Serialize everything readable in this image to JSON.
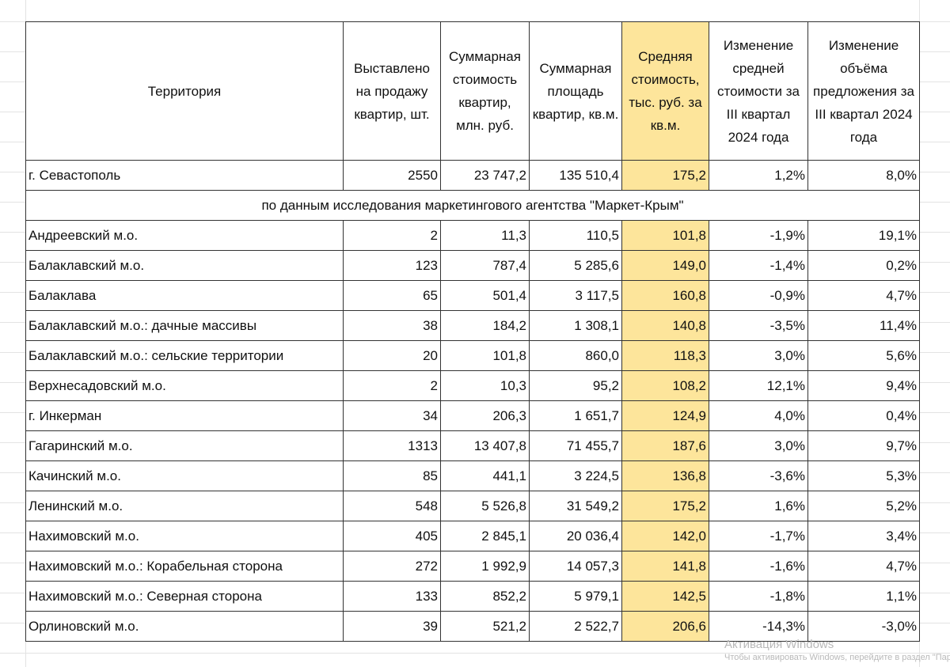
{
  "headers": [
    "Территория",
    "Выставлено на продажу квартир, шт.",
    "Суммарная стоимость квартир, млн. руб.",
    "Суммарная площадь квартир, кв.м.",
    "Средняя стоимость, тыс. руб. за кв.м.",
    "Изменение средней стоимости за III квартал 2024 года",
    "Изменение объёма предложения за III квартал 2024 года"
  ],
  "total_row": [
    "г. Севастополь",
    "2550",
    "23 747,2",
    "135 510,4",
    "175,2",
    "1,2%",
    "8,0%"
  ],
  "note": "по данным исследования маркетингового агентства \"Маркет-Крым\"",
  "rows": [
    [
      "Андреевский м.о.",
      "2",
      "11,3",
      "110,5",
      "101,8",
      "-1,9%",
      "19,1%"
    ],
    [
      "Балаклавский м.о.",
      "123",
      "787,4",
      "5 285,6",
      "149,0",
      "-1,4%",
      "0,2%"
    ],
    [
      "Балаклава",
      "65",
      "501,4",
      "3 117,5",
      "160,8",
      "-0,9%",
      "4,7%"
    ],
    [
      "Балаклавский м.о.: дачные массивы",
      "38",
      "184,2",
      "1 308,1",
      "140,8",
      "-3,5%",
      "11,4%"
    ],
    [
      "Балаклавский м.о.: сельские территории",
      "20",
      "101,8",
      "860,0",
      "118,3",
      "3,0%",
      "5,6%"
    ],
    [
      "Верхнесадовский м.о.",
      "2",
      "10,3",
      "95,2",
      "108,2",
      "12,1%",
      "9,4%"
    ],
    [
      "г. Инкерман",
      "34",
      "206,3",
      "1 651,7",
      "124,9",
      "4,0%",
      "0,4%"
    ],
    [
      "Гагаринский м.о.",
      "1313",
      "13 407,8",
      "71 455,7",
      "187,6",
      "3,0%",
      "9,7%"
    ],
    [
      "Качинский м.о.",
      "85",
      "441,1",
      "3 224,5",
      "136,8",
      "-3,6%",
      "5,3%"
    ],
    [
      "Ленинский м.о.",
      "548",
      "5 526,8",
      "31 549,2",
      "175,2",
      "1,6%",
      "5,2%"
    ],
    [
      "Нахимовский м.о.",
      "405",
      "2 845,1",
      "20 036,4",
      "142,0",
      "-1,7%",
      "3,4%"
    ],
    [
      "Нахимовский м.о.: Корабельная сторона",
      "272",
      "1 992,9",
      "14 057,3",
      "141,8",
      "-1,6%",
      "4,7%"
    ],
    [
      "Нахимовский м.о.: Северная сторона",
      "133",
      "852,2",
      "5 979,1",
      "142,5",
      "-1,8%",
      "1,1%"
    ],
    [
      "Орлиновский м.о.",
      "39",
      "521,2",
      "2 522,7",
      "206,6",
      "-14,3%",
      "-3,0%"
    ]
  ],
  "watermark": {
    "title": "Активация Windows",
    "subtitle": "Чтобы активировать Windows, перейдите в раздел \"Пар"
  },
  "colors": {
    "highlight": "#fde59b"
  }
}
